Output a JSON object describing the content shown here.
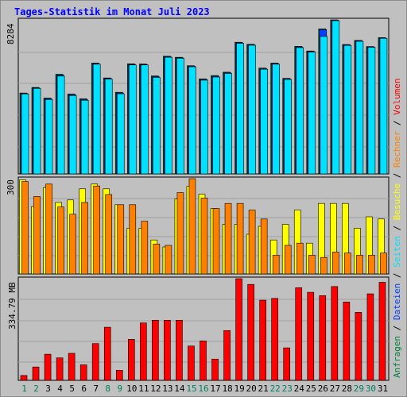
{
  "title": "Tages-Statistik im Monat Juli 2023",
  "colors": {
    "background": "#c0c0c0",
    "plot_background": "#c0c0c0",
    "grid": "#a0a0a0",
    "title": "#0000ff",
    "hits": "#008040",
    "files": "#0040ff",
    "pages": "#00e0ff",
    "visits": "#ffff00",
    "sites": "#ff8000",
    "kbytes": "#ff0000",
    "weekend_label": "#00805c",
    "weekday_label": "#000000"
  },
  "chart_data": [
    {
      "type": "bar",
      "panel": "top",
      "max_label": "8284",
      "ylim": [
        0,
        8284
      ],
      "grid": true,
      "series": [
        {
          "name": "Anfragen",
          "values": [
            4350,
            4650,
            4080,
            5360,
            4300,
            4040,
            5960,
            5160,
            4390,
            5920,
            5910,
            5270,
            6330,
            6270,
            5820,
            5110,
            5290,
            5470,
            7080,
            6970,
            5690,
            5960,
            5140,
            6860,
            6610,
            7800,
            8284,
            6960,
            7180,
            6850,
            7330
          ]
        },
        {
          "name": "Dateien",
          "values": [
            4320,
            4620,
            4040,
            5310,
            4260,
            4000,
            5930,
            5130,
            4350,
            5890,
            5880,
            5230,
            6300,
            6250,
            5790,
            5080,
            5250,
            5440,
            7050,
            6950,
            5660,
            5930,
            5110,
            6830,
            6580,
            7760,
            8260,
            6940,
            7160,
            6830,
            7300
          ]
        },
        {
          "name": "Seiten",
          "values": [
            4300,
            4600,
            4000,
            5260,
            4210,
            3960,
            5900,
            5100,
            4310,
            5860,
            5860,
            5190,
            6270,
            6220,
            5760,
            5040,
            5210,
            5400,
            7020,
            6920,
            5630,
            5900,
            5080,
            6790,
            6550,
            7390,
            8240,
            6910,
            7130,
            6810,
            7290
          ]
        }
      ],
      "categories": [
        "1",
        "2",
        "3",
        "4",
        "5",
        "6",
        "7",
        "8",
        "9",
        "10",
        "11",
        "12",
        "13",
        "14",
        "15",
        "16",
        "17",
        "18",
        "19",
        "20",
        "21",
        "22",
        "23",
        "24",
        "25",
        "26",
        "27",
        "28",
        "29",
        "30",
        "31"
      ]
    },
    {
      "type": "bar",
      "panel": "middle",
      "max_label": "300",
      "ylim": [
        0,
        300
      ],
      "grid": true,
      "series": [
        {
          "name": "Besuche",
          "values": [
            296,
            212,
            272,
            225,
            233,
            268,
            283,
            268,
            218,
            144,
            144,
            107,
            85,
            236,
            276,
            251,
            206,
            156,
            156,
            125,
            150,
            107,
            156,
            201,
            97,
            222,
            222,
            222,
            144,
            180,
            173
          ]
        },
        {
          "name": "Rechner",
          "values": [
            291,
            244,
            283,
            211,
            188,
            225,
            277,
            250,
            218,
            218,
            166,
            94,
            90,
            256,
            300,
            239,
            206,
            222,
            222,
            201,
            173,
            59,
            90,
            97,
            59,
            52,
            69,
            66,
            59,
            59,
            66
          ]
        }
      ],
      "categories": [
        "1",
        "2",
        "3",
        "4",
        "5",
        "6",
        "7",
        "8",
        "9",
        "10",
        "11",
        "12",
        "13",
        "14",
        "15",
        "16",
        "17",
        "18",
        "19",
        "20",
        "21",
        "22",
        "23",
        "24",
        "25",
        "26",
        "27",
        "28",
        "29",
        "30",
        "31"
      ]
    },
    {
      "type": "bar",
      "panel": "bottom",
      "max_label": "334.79 MB",
      "ylim": [
        0,
        334.79
      ],
      "grid": true,
      "series": [
        {
          "name": "Volumen",
          "values": [
            16,
            44,
            86,
            74,
            89,
            51,
            121,
            175,
            33,
            135,
            189,
            198,
            198,
            198,
            113,
            130,
            70,
            164,
            334.79,
            316,
            264,
            270,
            107,
            305,
            290,
            279,
            309,
            258,
            224,
            285,
            323
          ]
        }
      ],
      "categories": [
        "1",
        "2",
        "3",
        "4",
        "5",
        "6",
        "7",
        "8",
        "9",
        "10",
        "11",
        "12",
        "13",
        "14",
        "15",
        "16",
        "17",
        "18",
        "19",
        "20",
        "21",
        "22",
        "23",
        "24",
        "25",
        "26",
        "27",
        "28",
        "29",
        "30",
        "31"
      ]
    }
  ],
  "x_labels": [
    {
      "text": "1",
      "weekend": true
    },
    {
      "text": "2",
      "weekend": true
    },
    {
      "text": "3",
      "weekend": false
    },
    {
      "text": "4",
      "weekend": false
    },
    {
      "text": "5",
      "weekend": false
    },
    {
      "text": "6",
      "weekend": false
    },
    {
      "text": "7",
      "weekend": false
    },
    {
      "text": "8",
      "weekend": true
    },
    {
      "text": "9",
      "weekend": true
    },
    {
      "text": "10",
      "weekend": false
    },
    {
      "text": "11",
      "weekend": false
    },
    {
      "text": "12",
      "weekend": false
    },
    {
      "text": "13",
      "weekend": false
    },
    {
      "text": "14",
      "weekend": false
    },
    {
      "text": "15",
      "weekend": true
    },
    {
      "text": "16",
      "weekend": true
    },
    {
      "text": "17",
      "weekend": false
    },
    {
      "text": "18",
      "weekend": false
    },
    {
      "text": "19",
      "weekend": false
    },
    {
      "text": "20",
      "weekend": false
    },
    {
      "text": "21",
      "weekend": false
    },
    {
      "text": "22",
      "weekend": true
    },
    {
      "text": "23",
      "weekend": true
    },
    {
      "text": "24",
      "weekend": false
    },
    {
      "text": "25",
      "weekend": false
    },
    {
      "text": "26",
      "weekend": false
    },
    {
      "text": "27",
      "weekend": false
    },
    {
      "text": "28",
      "weekend": false
    },
    {
      "text": "29",
      "weekend": true
    },
    {
      "text": "30",
      "weekend": true
    },
    {
      "text": "31",
      "weekend": false
    }
  ],
  "legend_right": [
    {
      "text": "Anfragen",
      "color": "#008040"
    },
    {
      "text": " / ",
      "color": "#000000"
    },
    {
      "text": "Dateien",
      "color": "#0040ff"
    },
    {
      "text": " / ",
      "color": "#000000"
    },
    {
      "text": "Seiten",
      "color": "#00e0ff"
    },
    {
      "text": " / ",
      "color": "#000000"
    },
    {
      "text": "Besuche",
      "color": "#ffff00"
    },
    {
      "text": " / ",
      "color": "#000000"
    },
    {
      "text": "Rechner",
      "color": "#ff8000"
    },
    {
      "text": " / ",
      "color": "#000000"
    },
    {
      "text": "Volumen",
      "color": "#ff0000"
    }
  ]
}
